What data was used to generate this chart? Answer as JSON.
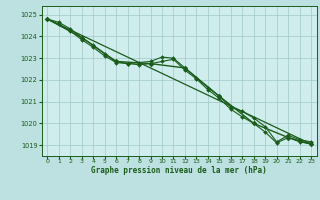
{
  "title": "Graphe pression niveau de la mer (hPa)",
  "background_color": "#bde0e0",
  "plot_bg_color": "#d0eded",
  "grid_color": "#a0c8c8",
  "line_color": "#1a5c1a",
  "xlim": [
    -0.5,
    23.5
  ],
  "ylim": [
    1018.5,
    1025.4
  ],
  "yticks": [
    1019,
    1020,
    1021,
    1022,
    1023,
    1024,
    1025
  ],
  "xticks": [
    0,
    1,
    2,
    3,
    4,
    5,
    6,
    7,
    8,
    9,
    10,
    11,
    12,
    13,
    14,
    15,
    16,
    17,
    18,
    19,
    20,
    21,
    22,
    23
  ],
  "series": [
    {
      "x": [
        0,
        1,
        2,
        3,
        4,
        5,
        6,
        7,
        8,
        9,
        10,
        11,
        12,
        13,
        14,
        15,
        16,
        17,
        18,
        19,
        20,
        21,
        22,
        23
      ],
      "y": [
        1024.8,
        1024.65,
        1024.35,
        1023.95,
        1023.6,
        1023.2,
        1022.85,
        1022.75,
        1022.8,
        1022.85,
        1023.05,
        1023.0,
        1022.55,
        1022.1,
        1021.65,
        1021.25,
        1020.75,
        1020.55,
        1020.25,
        1019.85,
        1019.15,
        1019.45,
        1019.25,
        1019.15
      ],
      "marker": "D",
      "markersize": 2.0,
      "linewidth": 0.8
    },
    {
      "x": [
        0,
        1,
        2,
        3,
        4,
        5,
        6,
        7,
        8,
        9,
        10,
        11,
        12,
        13,
        14,
        15,
        16,
        17,
        18,
        19,
        20,
        21,
        22,
        23
      ],
      "y": [
        1024.8,
        1024.55,
        1024.25,
        1023.85,
        1023.5,
        1023.1,
        1022.8,
        1022.75,
        1022.7,
        1022.75,
        1022.85,
        1022.95,
        1022.45,
        1022.05,
        1021.55,
        1021.15,
        1020.65,
        1020.3,
        1020.0,
        1019.6,
        1019.1,
        1019.35,
        1019.15,
        1019.05
      ],
      "marker": "D",
      "markersize": 2.0,
      "linewidth": 0.8
    },
    {
      "x": [
        0,
        3,
        6,
        9,
        12,
        15,
        18,
        21,
        23
      ],
      "y": [
        1024.8,
        1023.95,
        1022.85,
        1022.75,
        1022.55,
        1021.25,
        1020.0,
        1019.35,
        1019.05
      ],
      "marker": "D",
      "markersize": 2.5,
      "linewidth": 1.0
    },
    {
      "x": [
        0,
        23
      ],
      "y": [
        1024.8,
        1019.05
      ],
      "marker": null,
      "markersize": 0,
      "linewidth": 0.9
    }
  ]
}
